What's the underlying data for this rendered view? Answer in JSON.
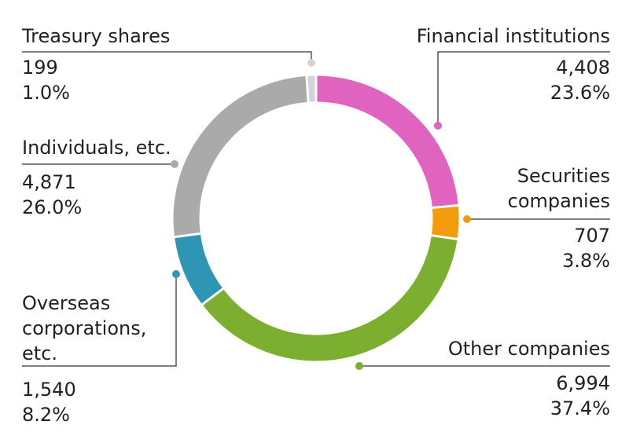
{
  "chart_data": {
    "type": "pie",
    "style": "donut",
    "slices": [
      {
        "label": "Financial institutions",
        "value": 4408,
        "value_text": "4,408",
        "percent": "23.6%",
        "color": "#e063bf"
      },
      {
        "label": "Securities companies",
        "value": 707,
        "value_text": "707",
        "percent": "3.8%",
        "color": "#f39c0b"
      },
      {
        "label": "Other companies",
        "value": 6994,
        "value_text": "6,994",
        "percent": "37.4%",
        "color": "#7cae2f"
      },
      {
        "label": "Overseas corporations, etc.",
        "value": 1540,
        "value_text": "1,540",
        "percent": "8.2%",
        "color": "#2f95b5"
      },
      {
        "label": "Individuals, etc.",
        "value": 4871,
        "value_text": "4,871",
        "percent": "26.0%",
        "color": "#aaaaaa"
      },
      {
        "label": "Treasury shares",
        "value": 199,
        "value_text": "199",
        "percent": "1.0%",
        "color": "#d4d4d4"
      }
    ],
    "legend_position": "outside, callout labels"
  }
}
